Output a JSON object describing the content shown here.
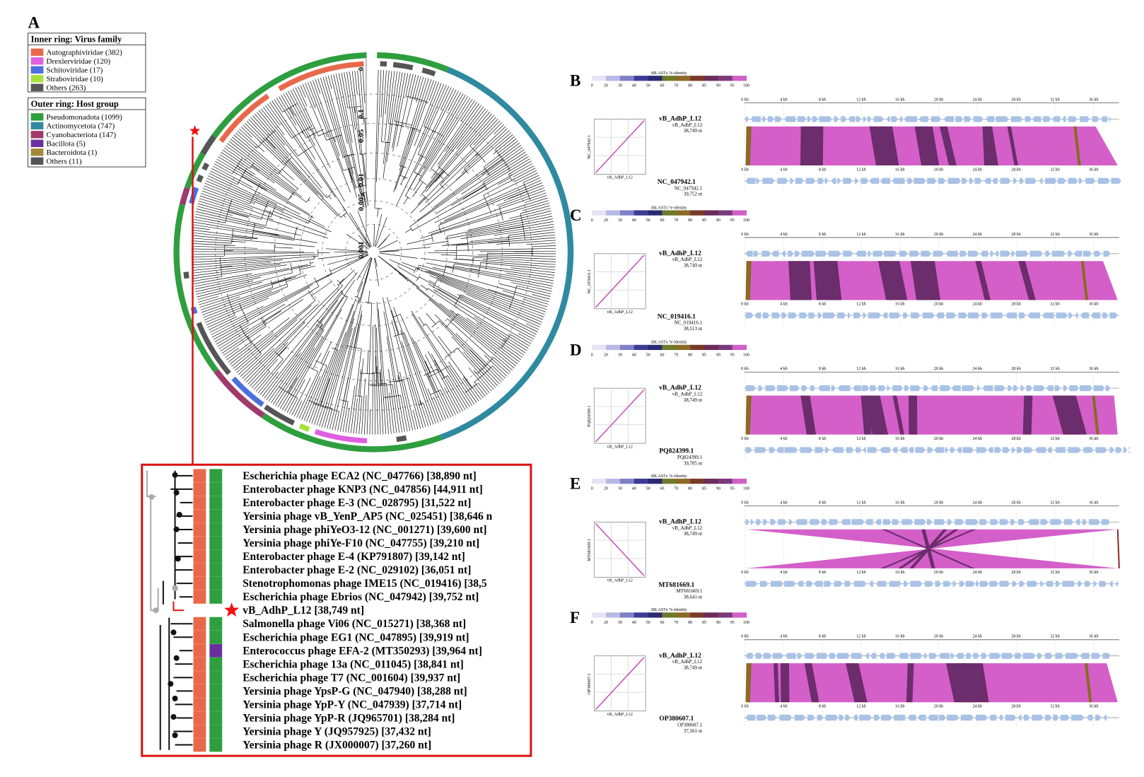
{
  "panel_a": {
    "label": "A",
    "inner_ring": {
      "title": "Inner ring: Virus family",
      "items": [
        {
          "label": "Autographiviridae (382)",
          "color": "#e8694a"
        },
        {
          "label": "Drexlerviridae (120)",
          "color": "#e05ee0"
        },
        {
          "label": "Schitoviridae (17)",
          "color": "#4a6fe0"
        },
        {
          "label": "Straboviridae (10)",
          "color": "#a6e03a"
        },
        {
          "label": "Others (263)",
          "color": "#555555"
        }
      ]
    },
    "outer_ring": {
      "title": "Outer ring: Host group",
      "items": [
        {
          "label": "Pseudomonadota (1099)",
          "color": "#2e9e3e"
        },
        {
          "label": "Actinomycetota (747)",
          "color": "#2f8aa0"
        },
        {
          "label": "Cyanobacteriota (147)",
          "color": "#a03a6a"
        },
        {
          "label": "Bacillota (5)",
          "color": "#6a2ea0"
        },
        {
          "label": "Bacteroidota (1)",
          "color": "#a08a3a"
        },
        {
          "label": "Others (11)",
          "color": "#555555"
        }
      ]
    },
    "scale_labels": [
      "0.5",
      "0.1",
      "0.05",
      "0.01",
      "0.005",
      "0.001"
    ],
    "inset_rows": [
      "Escherichia phage ECA2 (NC_047766) [38,890 nt]",
      "Enterobacter phage KNP3 (NC_047856) [44,911 nt]",
      "Enterobacter phage E-3 (NC_028795) [31,522 nt]",
      "Yersinia phage vB_YenP_AP5 (NC_025451) [38,646 n",
      "Yersinia phage phiYeO3-12 (NC_001271) [39,600 nt]",
      "Yersinia phage phiYe-F10 (NC_047755) [39,210 nt]",
      "Enterobacter phage E-4 (KP791807) [39,142 nt]",
      "Enterobacter phage E-2 (NC_029102) [36,051 nt]",
      "Stenotrophomonas phage IME15 (NC_019416) [38,5",
      "Escherichia phage Ebrios (NC_047942) [39,752 nt]",
      "vB_AdhP_L12 [38,749 nt]",
      "Salmonella phage Vi06 (NC_015271) [38,368 nt]",
      "Escherichia phage EG1 (NC_047895) [39,919 nt]",
      "Enterococcus phage EFA-2 (MT350293) [39,964 nt]",
      "Escherichia phage 13a (NC_011045) [38,841 nt]",
      "Escherichia phage T7 (NC_001604) [39,937 nt]",
      "Yersinia phage YpsP-G (NC_047940) [38,288 nt]",
      "Yersinia phage YpP-Y (NC_047939) [37,714 nt]",
      "Yersinia phage YpP-R (JQ965701) [38,284 nt]",
      "Yersinia phage Y (JQ957925) [37,432 nt]",
      "Yersinia phage R (JX000007) [37,260 nt]"
    ]
  },
  "identity_scale": {
    "title": "tBLASTx %-identity",
    "ticks": [
      "0",
      "20",
      "30",
      "40",
      "50",
      "60",
      "70",
      "80",
      "85",
      "90",
      "95",
      "100"
    ]
  },
  "kb_ticks": [
    "0 kb",
    "4 kb",
    "8 kb",
    "12 kb",
    "16 kb",
    "20 kb",
    "24 kb",
    "28 kb",
    "32 kb",
    "36 kb"
  ],
  "panels": [
    {
      "label": "B",
      "query": {
        "name": "vB_AdhP_L12",
        "id": "vB_AdhP_L12",
        "length": "38,749 nt"
      },
      "subject": {
        "name": "NC_047942.1",
        "id": "NC_047942.1",
        "length": "39,752 nt"
      }
    },
    {
      "label": "C",
      "query": {
        "name": "vB_AdhP_L12",
        "id": "vB_AdhP_L12",
        "length": "38,749 nt"
      },
      "subject": {
        "name": "NC_019416.1",
        "id": "NC_019416.1",
        "length": "38,513 nt"
      }
    },
    {
      "label": "D",
      "query": {
        "name": "vB_AdhP_L12",
        "id": "vB_AdhP_L12",
        "length": "38,749 nt"
      },
      "subject": {
        "name": "PQ824399.1",
        "id": "PQ824399.1",
        "length": "39,785 nt"
      }
    },
    {
      "label": "E",
      "query": {
        "name": "vB_AdhP_L12",
        "id": "vB_AdhP_L12",
        "length": "38,749 nt"
      },
      "subject": {
        "name": "MT681669.1",
        "id": "MT681669.1",
        "length": "38,641 nt"
      }
    },
    {
      "label": "F",
      "query": {
        "name": "vB_AdhP_L12",
        "id": "vB_AdhP_L12",
        "length": "38,749 nt"
      },
      "subject": {
        "name": "OP380607.1",
        "id": "OP380607.1",
        "length": "37,561 nt"
      }
    }
  ]
}
